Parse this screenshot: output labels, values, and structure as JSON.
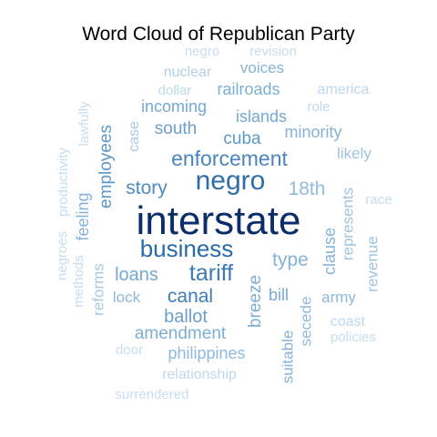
{
  "chart_data": {
    "type": "wordcloud",
    "title": "Word Cloud of Republican Party",
    "words": [
      {
        "text": "interstate",
        "weight": 1.0,
        "color": "#0b2d6b",
        "rotated": false
      },
      {
        "text": "negro",
        "weight": 0.78,
        "color": "#2f6ea8",
        "rotated": false
      },
      {
        "text": "business",
        "weight": 0.7,
        "color": "#2b6aa6",
        "rotated": false
      },
      {
        "text": "tariff",
        "weight": 0.66,
        "color": "#3d7bb5",
        "rotated": false
      },
      {
        "text": "enforcement",
        "weight": 0.64,
        "color": "#4a86bd",
        "rotated": false
      },
      {
        "text": "story",
        "weight": 0.58,
        "color": "#4f8bc0",
        "rotated": false
      },
      {
        "text": "canal",
        "weight": 0.56,
        "color": "#3f7db7",
        "rotated": false
      },
      {
        "text": "18th",
        "weight": 0.54,
        "color": "#93bcdc",
        "rotated": false
      },
      {
        "text": "type",
        "weight": 0.54,
        "color": "#86b3d7",
        "rotated": false
      },
      {
        "text": "loans",
        "weight": 0.52,
        "color": "#76a9d1",
        "rotated": false
      },
      {
        "text": "ballot",
        "weight": 0.52,
        "color": "#6aa0cc",
        "rotated": false
      },
      {
        "text": "cuba",
        "weight": 0.5,
        "color": "#5e98c8",
        "rotated": false
      },
      {
        "text": "south",
        "weight": 0.5,
        "color": "#6aa0cc",
        "rotated": false
      },
      {
        "text": "employees",
        "weight": 0.5,
        "color": "#5e98c8",
        "rotated": true
      },
      {
        "text": "breeze",
        "weight": 0.5,
        "color": "#7eafd4",
        "rotated": true
      },
      {
        "text": "amendment",
        "weight": 0.48,
        "color": "#7eafd4",
        "rotated": false
      },
      {
        "text": "islands",
        "weight": 0.48,
        "color": "#76a9d1",
        "rotated": false
      },
      {
        "text": "incoming",
        "weight": 0.46,
        "color": "#76a9d1",
        "rotated": false
      },
      {
        "text": "railroads",
        "weight": 0.46,
        "color": "#7eafd4",
        "rotated": false
      },
      {
        "text": "minority",
        "weight": 0.46,
        "color": "#86b3d7",
        "rotated": false
      },
      {
        "text": "philippines",
        "weight": 0.46,
        "color": "#8fb9da",
        "rotated": false
      },
      {
        "text": "feeling",
        "weight": 0.46,
        "color": "#86b3d7",
        "rotated": true
      },
      {
        "text": "clause",
        "weight": 0.46,
        "color": "#86b3d7",
        "rotated": true
      },
      {
        "text": "bill",
        "weight": 0.44,
        "color": "#76a9d1",
        "rotated": false
      },
      {
        "text": "likely",
        "weight": 0.44,
        "color": "#9fc4e0",
        "rotated": false
      },
      {
        "text": "voices",
        "weight": 0.42,
        "color": "#86b3d7",
        "rotated": false
      },
      {
        "text": "army",
        "weight": 0.42,
        "color": "#8fb9da",
        "rotated": false
      },
      {
        "text": "lock",
        "weight": 0.42,
        "color": "#8fb9da",
        "rotated": false
      },
      {
        "text": "suitable",
        "weight": 0.42,
        "color": "#86b3d7",
        "rotated": true
      },
      {
        "text": "secede",
        "weight": 0.42,
        "color": "#8fb9da",
        "rotated": true
      },
      {
        "text": "reforms",
        "weight": 0.42,
        "color": "#a6c9e3",
        "rotated": true
      },
      {
        "text": "represents",
        "weight": 0.42,
        "color": "#9fc4e0",
        "rotated": true
      },
      {
        "text": "revenue",
        "weight": 0.42,
        "color": "#9fc4e0",
        "rotated": true
      },
      {
        "text": "nuclear",
        "weight": 0.4,
        "color": "#b2d0e7",
        "rotated": false
      },
      {
        "text": "america",
        "weight": 0.38,
        "color": "#bfd8ec",
        "rotated": false
      },
      {
        "text": "coast",
        "weight": 0.38,
        "color": "#bfd8ec",
        "rotated": false
      },
      {
        "text": "relationship",
        "weight": 0.38,
        "color": "#bfd8ec",
        "rotated": false
      },
      {
        "text": "case",
        "weight": 0.38,
        "color": "#a6c9e3",
        "rotated": true
      },
      {
        "text": "policies",
        "weight": 0.36,
        "color": "#c8ddef",
        "rotated": false
      },
      {
        "text": "race",
        "weight": 0.36,
        "color": "#c8ddef",
        "rotated": false
      },
      {
        "text": "dollar",
        "weight": 0.36,
        "color": "#bfd8ec",
        "rotated": false
      },
      {
        "text": "role",
        "weight": 0.36,
        "color": "#bfd8ec",
        "rotated": false
      },
      {
        "text": "revision",
        "weight": 0.36,
        "color": "#c8ddef",
        "rotated": false
      },
      {
        "text": "negro",
        "weight": 0.36,
        "color": "#c8ddef",
        "rotated": false
      },
      {
        "text": "door",
        "weight": 0.34,
        "color": "#c8ddef",
        "rotated": false
      },
      {
        "text": "surrendered",
        "weight": 0.36,
        "color": "#c8ddef",
        "rotated": false
      },
      {
        "text": "methods",
        "weight": 0.36,
        "color": "#c8ddef",
        "rotated": true
      },
      {
        "text": "negroes",
        "weight": 0.36,
        "color": "#c8ddef",
        "rotated": true
      },
      {
        "text": "productivity",
        "weight": 0.36,
        "color": "#c8ddef",
        "rotated": true
      },
      {
        "text": "lawfully",
        "weight": 0.34,
        "color": "#c8ddef",
        "rotated": true
      }
    ]
  }
}
